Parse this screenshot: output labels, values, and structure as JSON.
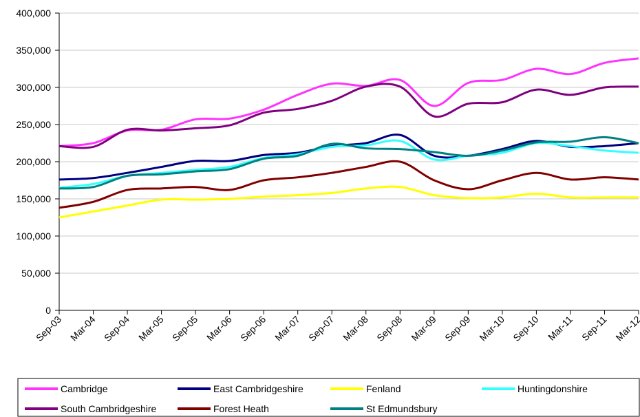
{
  "chart_data": {
    "type": "line",
    "categories": [
      "Sep-03",
      "Mar-04",
      "Sep-04",
      "Mar-05",
      "Sep-05",
      "Mar-06",
      "Sep-06",
      "Mar-07",
      "Sep-07",
      "Mar-08",
      "Sep-08",
      "Mar-09",
      "Sep-09",
      "Mar-10",
      "Sep-10",
      "Mar-11",
      "Sep-11",
      "Mar-12"
    ],
    "series": [
      {
        "name": "Cambridge",
        "color": "#ff33ff",
        "values": [
          221000,
          225000,
          242000,
          243000,
          257000,
          258000,
          270000,
          290000,
          305000,
          302000,
          310000,
          275000,
          306000,
          310000,
          325000,
          318000,
          333000,
          339000
        ]
      },
      {
        "name": "East Cambridgeshire",
        "color": "#000080",
        "values": [
          176000,
          178000,
          185000,
          193000,
          201000,
          201000,
          209000,
          212000,
          221000,
          225000,
          236000,
          208000,
          208000,
          217000,
          228000,
          220000,
          221000,
          225000
        ]
      },
      {
        "name": "Fenland",
        "color": "#ffff00",
        "values": [
          125000,
          133000,
          141000,
          149000,
          149000,
          150000,
          153000,
          155000,
          158000,
          164000,
          166000,
          155000,
          151000,
          152000,
          157000,
          152000,
          152000,
          152000
        ]
      },
      {
        "name": "Huntingdonshire",
        "color": "#33ffff",
        "values": [
          165000,
          170000,
          181000,
          185000,
          189000,
          193000,
          205000,
          210000,
          220000,
          222000,
          228000,
          203000,
          208000,
          212000,
          225000,
          221000,
          215000,
          212000
        ]
      },
      {
        "name": "South Cambridgeshire",
        "color": "#800080",
        "values": [
          221000,
          220000,
          243000,
          242000,
          245000,
          249000,
          266000,
          271000,
          282000,
          301000,
          301000,
          261000,
          278000,
          280000,
          297000,
          290000,
          300000,
          301000
        ]
      },
      {
        "name": "Forest Heath",
        "color": "#800000",
        "values": [
          138000,
          146000,
          162000,
          164000,
          166000,
          162000,
          175000,
          179000,
          185000,
          193000,
          200000,
          175000,
          163000,
          175000,
          185000,
          176000,
          179000,
          176000
        ]
      },
      {
        "name": "St Edmundsbury",
        "color": "#008080",
        "values": [
          164000,
          166000,
          181000,
          183000,
          187000,
          190000,
          204000,
          208000,
          224000,
          218000,
          217000,
          213000,
          208000,
          215000,
          226000,
          227000,
          233000,
          225000
        ]
      }
    ],
    "ylim": [
      0,
      400000
    ],
    "yticks": [
      0,
      {
        "value": 50000,
        "label": "50,000"
      },
      {
        "value": 100000,
        "label": "100,000"
      },
      {
        "value": 150000,
        "label": "150,000"
      },
      {
        "value": 200000,
        "label": "200,000"
      },
      {
        "value": 250000,
        "label": "250,000"
      },
      {
        "value": 300000,
        "label": "300,000"
      },
      {
        "value": 350000,
        "label": "350,000"
      },
      {
        "value": 400000,
        "label": "400,000"
      }
    ],
    "grid": true
  }
}
